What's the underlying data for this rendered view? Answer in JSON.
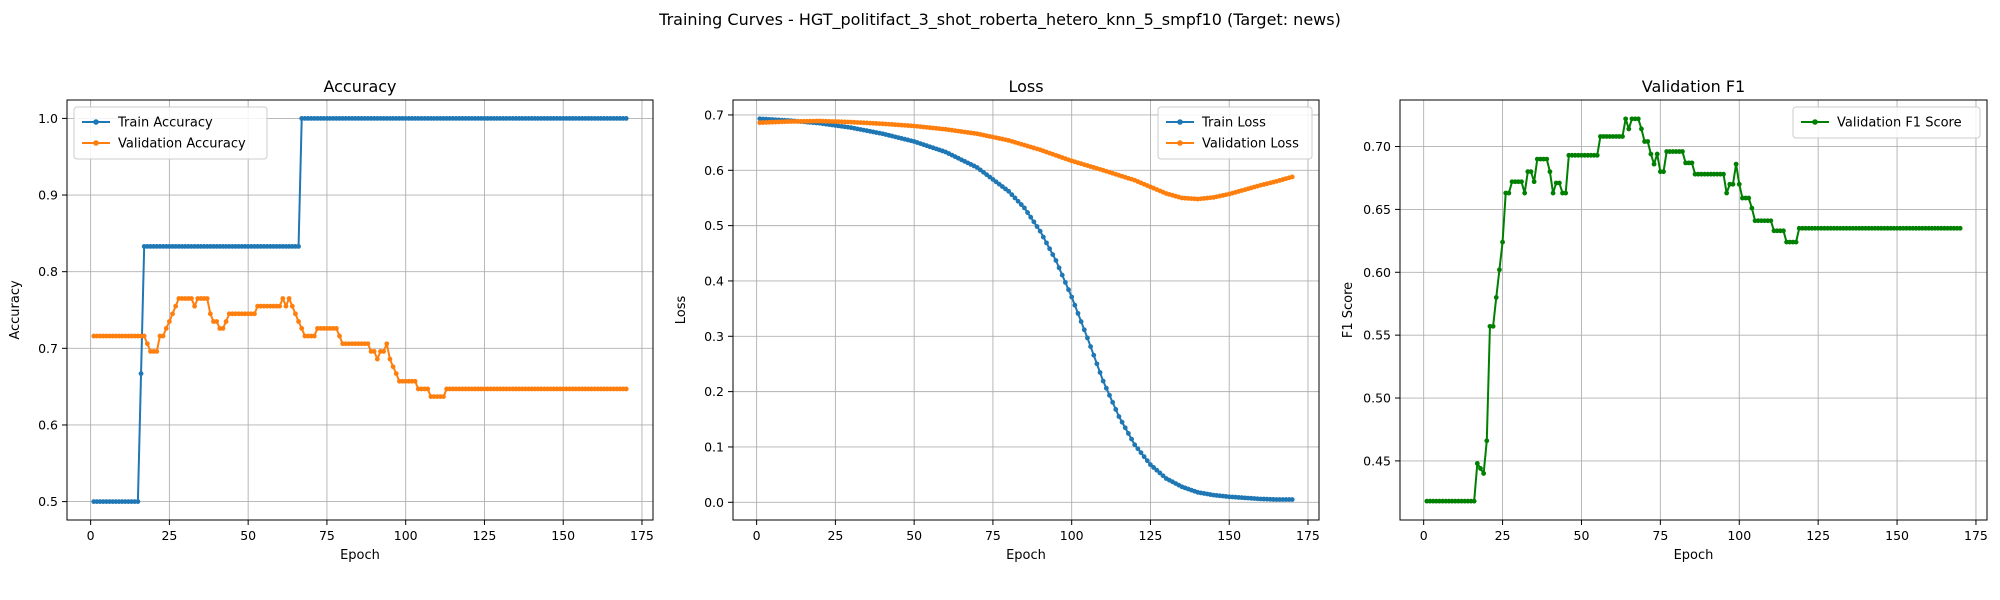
{
  "figure": {
    "suptitle": "Training Curves - HGT_politifact_3_shot_roberta_hetero_knn_5_smpf10 (Target: news)"
  },
  "chart_data": [
    {
      "type": "line",
      "title": "Accuracy",
      "xlabel": "Epoch",
      "ylabel": "Accuracy",
      "xlim": [
        -7.5,
        178.5
      ],
      "ylim": [
        0.476,
        1.024
      ],
      "xticks": [
        0,
        25,
        50,
        75,
        100,
        125,
        150,
        175
      ],
      "yticks": [
        0.5,
        0.6,
        0.7,
        0.8,
        0.9,
        1.0
      ],
      "ytick_labels": [
        "0.5",
        "0.6",
        "0.7",
        "0.8",
        "0.9",
        "1.0"
      ],
      "grid": true,
      "legend": "upper left",
      "series": [
        {
          "name": "Train Accuracy",
          "color": "#1f77b4",
          "points": [
            [
              1,
              0.5
            ],
            [
              15,
              0.5
            ],
            [
              16,
              0.667
            ],
            [
              17,
              0.833
            ],
            [
              66,
              0.833
            ],
            [
              67,
              1.0
            ],
            [
              170,
              1.0
            ]
          ]
        },
        {
          "name": "Validation Accuracy",
          "color": "#ff7f0e",
          "points": [
            [
              1,
              0.716
            ],
            [
              17,
              0.716
            ],
            [
              18,
              0.706
            ],
            [
              19,
              0.696
            ],
            [
              21,
              0.696
            ],
            [
              22,
              0.716
            ],
            [
              23,
              0.716
            ],
            [
              24,
              0.726
            ],
            [
              25,
              0.735
            ],
            [
              26,
              0.745
            ],
            [
              27,
              0.755
            ],
            [
              28,
              0.765
            ],
            [
              32,
              0.765
            ],
            [
              33,
              0.755
            ],
            [
              34,
              0.765
            ],
            [
              37,
              0.765
            ],
            [
              38,
              0.745
            ],
            [
              39,
              0.735
            ],
            [
              40,
              0.735
            ],
            [
              41,
              0.726
            ],
            [
              42,
              0.726
            ],
            [
              43,
              0.735
            ],
            [
              44,
              0.745
            ],
            [
              52,
              0.745
            ],
            [
              53,
              0.755
            ],
            [
              60,
              0.755
            ],
            [
              61,
              0.765
            ],
            [
              62,
              0.755
            ],
            [
              63,
              0.765
            ],
            [
              64,
              0.755
            ],
            [
              65,
              0.745
            ],
            [
              66,
              0.735
            ],
            [
              67,
              0.726
            ],
            [
              68,
              0.716
            ],
            [
              71,
              0.716
            ],
            [
              72,
              0.726
            ],
            [
              78,
              0.726
            ],
            [
              79,
              0.716
            ],
            [
              80,
              0.706
            ],
            [
              88,
              0.706
            ],
            [
              89,
              0.696
            ],
            [
              90,
              0.696
            ],
            [
              91,
              0.686
            ],
            [
              92,
              0.696
            ],
            [
              93,
              0.696
            ],
            [
              94,
              0.706
            ],
            [
              95,
              0.686
            ],
            [
              96,
              0.676
            ],
            [
              97,
              0.667
            ],
            [
              98,
              0.657
            ],
            [
              103,
              0.657
            ],
            [
              104,
              0.647
            ],
            [
              107,
              0.647
            ],
            [
              108,
              0.637
            ],
            [
              112,
              0.637
            ],
            [
              113,
              0.647
            ],
            [
              170,
              0.647
            ]
          ]
        }
      ]
    },
    {
      "type": "line",
      "title": "Loss",
      "xlabel": "Epoch",
      "ylabel": "Loss",
      "xlim": [
        -7.5,
        178.5
      ],
      "ylim": [
        -0.032,
        0.727
      ],
      "xticks": [
        0,
        25,
        50,
        75,
        100,
        125,
        150,
        175
      ],
      "yticks": [
        0.0,
        0.1,
        0.2,
        0.3,
        0.4,
        0.5,
        0.6,
        0.7
      ],
      "ytick_labels": [
        "0.0",
        "0.1",
        "0.2",
        "0.3",
        "0.4",
        "0.5",
        "0.6",
        "0.7"
      ],
      "grid": true,
      "legend": "upper right",
      "series": [
        {
          "name": "Train Loss",
          "color": "#1f77b4",
          "points": [
            [
              1,
              0.693
            ],
            [
              10,
              0.69
            ],
            [
              20,
              0.685
            ],
            [
              30,
              0.677
            ],
            [
              40,
              0.666
            ],
            [
              50,
              0.652
            ],
            [
              60,
              0.633
            ],
            [
              70,
              0.605
            ],
            [
              80,
              0.562
            ],
            [
              85,
              0.532
            ],
            [
              90,
              0.49
            ],
            [
              95,
              0.437
            ],
            [
              100,
              0.371
            ],
            [
              105,
              0.297
            ],
            [
              110,
              0.219
            ],
            [
              115,
              0.155
            ],
            [
              120,
              0.104
            ],
            [
              125,
              0.068
            ],
            [
              130,
              0.043
            ],
            [
              135,
              0.028
            ],
            [
              140,
              0.018
            ],
            [
              145,
              0.013
            ],
            [
              150,
              0.01
            ],
            [
              155,
              0.008
            ],
            [
              160,
              0.006
            ],
            [
              165,
              0.005
            ],
            [
              170,
              0.005
            ]
          ]
        },
        {
          "name": "Validation Loss",
          "color": "#ff7f0e",
          "points": [
            [
              1,
              0.686
            ],
            [
              10,
              0.688
            ],
            [
              20,
              0.689
            ],
            [
              30,
              0.687
            ],
            [
              40,
              0.684
            ],
            [
              50,
              0.68
            ],
            [
              60,
              0.674
            ],
            [
              70,
              0.666
            ],
            [
              80,
              0.654
            ],
            [
              90,
              0.637
            ],
            [
              100,
              0.617
            ],
            [
              110,
              0.6
            ],
            [
              120,
              0.582
            ],
            [
              125,
              0.57
            ],
            [
              130,
              0.558
            ],
            [
              135,
              0.55
            ],
            [
              140,
              0.548
            ],
            [
              145,
              0.551
            ],
            [
              150,
              0.557
            ],
            [
              155,
              0.565
            ],
            [
              160,
              0.573
            ],
            [
              165,
              0.58
            ],
            [
              170,
              0.588
            ]
          ]
        }
      ]
    },
    {
      "type": "line",
      "title": "Validation F1",
      "xlabel": "Epoch",
      "ylabel": "F1 Score",
      "xlim": [
        -7.5,
        178.5
      ],
      "ylim": [
        0.403,
        0.737
      ],
      "xticks": [
        0,
        25,
        50,
        75,
        100,
        125,
        150,
        175
      ],
      "yticks": [
        0.45,
        0.5,
        0.55,
        0.6,
        0.65,
        0.7
      ],
      "ytick_labels": [
        "0.45",
        "0.50",
        "0.55",
        "0.60",
        "0.65",
        "0.70"
      ],
      "grid": true,
      "legend": "upper right",
      "series": [
        {
          "name": "Validation F1 Score",
          "color": "#008000",
          "points": [
            [
              1,
              0.418
            ],
            [
              16,
              0.418
            ],
            [
              17,
              0.448
            ],
            [
              18,
              0.444
            ],
            [
              19,
              0.44
            ],
            [
              20,
              0.466
            ],
            [
              21,
              0.557
            ],
            [
              22,
              0.557
            ],
            [
              23,
              0.58
            ],
            [
              24,
              0.602
            ],
            [
              25,
              0.624
            ],
            [
              26,
              0.663
            ],
            [
              27,
              0.663
            ],
            [
              28,
              0.672
            ],
            [
              31,
              0.672
            ],
            [
              32,
              0.663
            ],
            [
              33,
              0.68
            ],
            [
              34,
              0.68
            ],
            [
              35,
              0.672
            ],
            [
              36,
              0.69
            ],
            [
              39,
              0.69
            ],
            [
              40,
              0.68
            ],
            [
              41,
              0.663
            ],
            [
              42,
              0.671
            ],
            [
              43,
              0.671
            ],
            [
              44,
              0.663
            ],
            [
              45,
              0.663
            ],
            [
              46,
              0.693
            ],
            [
              55,
              0.693
            ],
            [
              56,
              0.708
            ],
            [
              63,
              0.708
            ],
            [
              64,
              0.722
            ],
            [
              65,
              0.714
            ],
            [
              66,
              0.722
            ],
            [
              68,
              0.722
            ],
            [
              69,
              0.714
            ],
            [
              70,
              0.704
            ],
            [
              71,
              0.704
            ],
            [
              72,
              0.694
            ],
            [
              73,
              0.686
            ],
            [
              74,
              0.694
            ],
            [
              75,
              0.68
            ],
            [
              76,
              0.68
            ],
            [
              77,
              0.696
            ],
            [
              82,
              0.696
            ],
            [
              83,
              0.687
            ],
            [
              85,
              0.687
            ],
            [
              86,
              0.678
            ],
            [
              95,
              0.678
            ],
            [
              96,
              0.663
            ],
            [
              97,
              0.67
            ],
            [
              98,
              0.67
            ],
            [
              99,
              0.686
            ],
            [
              100,
              0.67
            ],
            [
              101,
              0.659
            ],
            [
              103,
              0.659
            ],
            [
              104,
              0.651
            ],
            [
              105,
              0.641
            ],
            [
              110,
              0.641
            ],
            [
              111,
              0.633
            ],
            [
              114,
              0.633
            ],
            [
              115,
              0.624
            ],
            [
              118,
              0.624
            ],
            [
              119,
              0.635
            ],
            [
              170,
              0.635
            ]
          ]
        }
      ]
    }
  ]
}
